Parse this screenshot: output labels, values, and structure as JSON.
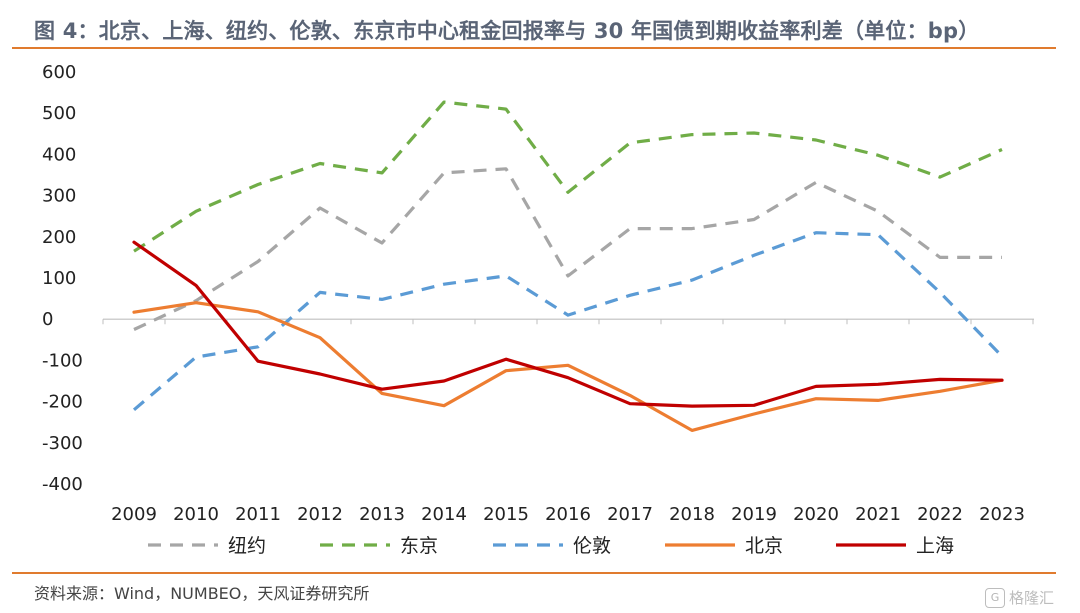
{
  "title": "图 4：北京、上海、纽约、伦敦、东京市中心租金回报率与 30 年国债到期收益率利差（单位：bp）",
  "source": "资料来源：Wind，NUMBEO，天风证券研究所",
  "watermark": "格隆汇",
  "chart_data": {
    "type": "line",
    "title": "图 4：北京、上海、纽约、伦敦、东京市中心租金回报率与 30 年国债到期收益率利差（单位：bp）",
    "ylim": [
      -400,
      600
    ],
    "yticks": [
      "600",
      "500",
      "400",
      "300",
      "200",
      "100",
      "0",
      "-100",
      "-200",
      "-300",
      "-400"
    ],
    "categories": [
      "2009",
      "2010",
      "2011",
      "2012",
      "2013",
      "2014",
      "2015",
      "2016",
      "2017",
      "2018",
      "2019",
      "2020",
      "2021",
      "2022",
      "2023"
    ],
    "grid": false,
    "legend_position": "bottom",
    "series": [
      {
        "name": "纽约",
        "color": "#a6a6a6",
        "dash": true,
        "values": [
          -25,
          45,
          140,
          270,
          185,
          355,
          365,
          105,
          220,
          220,
          242,
          332,
          262,
          150,
          150
        ]
      },
      {
        "name": "东京",
        "color": "#70ad47",
        "dash": true,
        "values": [
          165,
          262,
          327,
          378,
          355,
          527,
          510,
          308,
          428,
          448,
          452,
          435,
          398,
          345,
          412
        ]
      },
      {
        "name": "伦敦",
        "color": "#5b9bd5",
        "dash": true,
        "values": [
          -220,
          -92,
          -67,
          65,
          48,
          85,
          105,
          10,
          58,
          95,
          155,
          210,
          205,
          65,
          -90
        ]
      },
      {
        "name": "北京",
        "color": "#ed7d31",
        "dash": false,
        "values": [
          17,
          40,
          18,
          -45,
          -180,
          -210,
          -125,
          -112,
          -185,
          -270,
          -230,
          -193,
          -197,
          -175,
          -148
        ]
      },
      {
        "name": "上海",
        "color": "#c00000",
        "dash": false,
        "values": [
          187,
          82,
          -102,
          -133,
          -170,
          -150,
          -97,
          -142,
          -205,
          -211,
          -209,
          -163,
          -158,
          -146,
          -148
        ]
      }
    ]
  }
}
